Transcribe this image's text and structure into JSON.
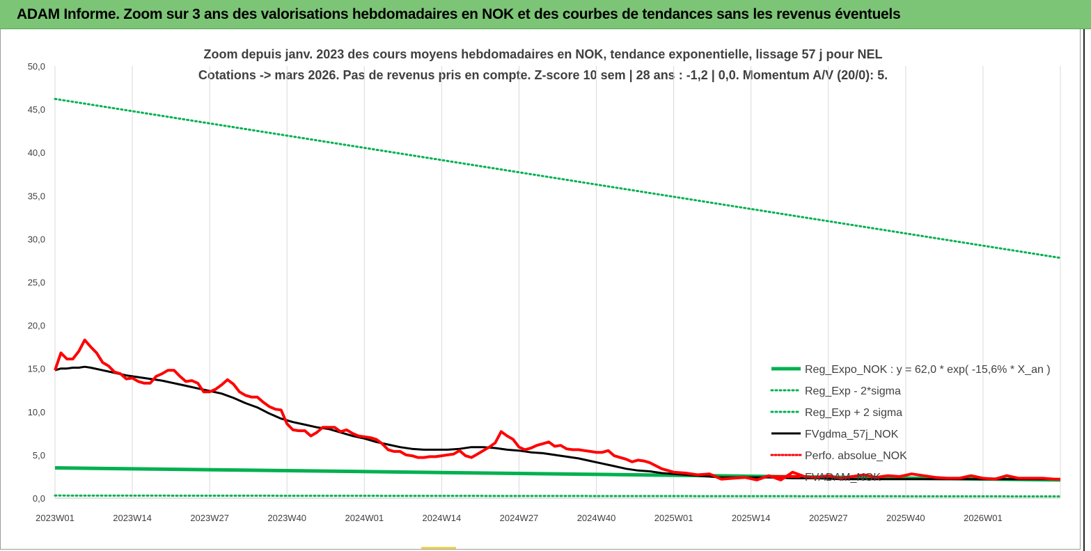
{
  "header": {
    "title": "ADAM Informe. Zoom sur 3 ans des valorisations hebdomadaires en NOK et des courbes de tendances sans les revenus éventuels"
  },
  "chart_data": {
    "type": "line",
    "title_line1": "Zoom depuis janv. 2023 des cours moyens hebdomadaires en NOK, tendance exponentielle, lissage 57 j pour NEL",
    "title_line2": "Cotations -> mars 2026. Pas de revenus pris en compte. Z-score 10 sem | 28 ans : -1,2 | 0,0. Momentum A/V (20/0): 5.",
    "ylim": [
      0,
      50
    ],
    "y_ticks": [
      "0,0",
      "5,0",
      "10,0",
      "15,0",
      "20,0",
      "25,0",
      "30,0",
      "35,0",
      "40,0",
      "45,0",
      "50,0"
    ],
    "x_ticks": [
      "2023W01",
      "2023W14",
      "2023W27",
      "2023W40",
      "2024W01",
      "2024W14",
      "2024W27",
      "2024W40",
      "2025W01",
      "2025W14",
      "2025W27",
      "2025W40",
      "2026W01"
    ],
    "x_range_weeks": [
      0,
      169
    ],
    "grid": "vertical",
    "legend_position": "bottom-right",
    "colors": {
      "reg_expo": "#00b050",
      "band": "#00b050",
      "fvgdma": "#000000",
      "perfo": "#ff0000",
      "fvadam": "#ff0000",
      "grid": "#d9d9d9"
    },
    "series": [
      {
        "name": "Reg_Expo_NOK : y = 62,0 * exp( -15,6% *  X_an )",
        "style": "solid-thick",
        "x": [
          0,
          169
        ],
        "values": [
          3.5,
          2.1
        ]
      },
      {
        "name": "Reg_Exp - 2*sigma",
        "style": "dotted",
        "x": [
          0,
          169
        ],
        "values": [
          0.3,
          0.2
        ]
      },
      {
        "name": "Reg_Exp + 2 sigma",
        "style": "dotted",
        "x": [
          0,
          169
        ],
        "values": [
          46.2,
          27.8
        ]
      },
      {
        "name": "FVgdma_57j_NOK",
        "style": "solid",
        "x": [
          0,
          1,
          2,
          3,
          4,
          5,
          6,
          8,
          10,
          12,
          14,
          16,
          18,
          20,
          22,
          24,
          26,
          28,
          30,
          32,
          34,
          36,
          38,
          40,
          42,
          44,
          46,
          48,
          50,
          52,
          54,
          56,
          58,
          60,
          62,
          64,
          66,
          68,
          70,
          72,
          74,
          76,
          78,
          80,
          82,
          84,
          86,
          88,
          90,
          92,
          94,
          96,
          98,
          100,
          102,
          104,
          106,
          108,
          110,
          112,
          114,
          116,
          118,
          120,
          124,
          128,
          132,
          136,
          140,
          144,
          148,
          152,
          156,
          160,
          164,
          169
        ],
        "values": [
          14.8,
          15.0,
          15.0,
          15.1,
          15.1,
          15.2,
          15.1,
          14.8,
          14.5,
          14.2,
          14.0,
          13.8,
          13.6,
          13.3,
          13.0,
          12.7,
          12.4,
          12.1,
          11.6,
          11.0,
          10.5,
          9.8,
          9.2,
          8.8,
          8.5,
          8.2,
          8.0,
          7.6,
          7.2,
          6.9,
          6.5,
          6.2,
          5.9,
          5.7,
          5.6,
          5.6,
          5.6,
          5.7,
          5.9,
          5.9,
          5.8,
          5.6,
          5.5,
          5.3,
          5.2,
          5.0,
          4.8,
          4.6,
          4.3,
          4.0,
          3.7,
          3.4,
          3.2,
          3.1,
          2.9,
          2.8,
          2.7,
          2.6,
          2.5,
          2.4,
          2.4,
          2.4,
          2.4,
          2.4,
          2.3,
          2.3,
          2.2,
          2.2,
          2.2,
          2.2,
          2.2,
          2.2,
          2.2,
          2.2,
          2.2,
          2.2
        ]
      },
      {
        "name": "Perfo. absolue_NOK",
        "style": "dotted",
        "x": [],
        "values": []
      },
      {
        "name": "FVADAM_NOK",
        "style": "solid-thick",
        "x": [
          0,
          1,
          2,
          3,
          4,
          5,
          6,
          7,
          8,
          9,
          10,
          11,
          12,
          13,
          14,
          15,
          16,
          17,
          18,
          19,
          20,
          21,
          22,
          23,
          24,
          25,
          26,
          27,
          28,
          29,
          30,
          31,
          32,
          33,
          34,
          35,
          36,
          37,
          38,
          39,
          40,
          41,
          42,
          43,
          44,
          45,
          46,
          47,
          48,
          49,
          50,
          51,
          52,
          53,
          54,
          55,
          56,
          57,
          58,
          59,
          60,
          61,
          62,
          63,
          64,
          65,
          66,
          67,
          68,
          69,
          70,
          71,
          72,
          73,
          74,
          75,
          76,
          77,
          78,
          79,
          80,
          81,
          82,
          83,
          84,
          85,
          86,
          87,
          88,
          89,
          90,
          91,
          92,
          93,
          94,
          95,
          96,
          97,
          98,
          99,
          100,
          102,
          104,
          106,
          108,
          110,
          112,
          114,
          116,
          118,
          120,
          122,
          124,
          126,
          128,
          130,
          132,
          134,
          136,
          138,
          140,
          142,
          144,
          146,
          148,
          150,
          152,
          154,
          156,
          158,
          160,
          162,
          164,
          166,
          168,
          169
        ],
        "values": [
          14.8,
          16.8,
          16.1,
          16.1,
          17.0,
          18.3,
          17.5,
          16.8,
          15.7,
          15.3,
          14.6,
          14.4,
          13.8,
          13.9,
          13.5,
          13.3,
          13.3,
          14.1,
          14.4,
          14.8,
          14.8,
          14.1,
          13.5,
          13.6,
          13.3,
          12.3,
          12.3,
          12.6,
          13.1,
          13.7,
          13.2,
          12.3,
          11.9,
          11.7,
          11.7,
          11.1,
          10.6,
          10.3,
          10.2,
          8.6,
          7.9,
          7.8,
          7.8,
          7.2,
          7.6,
          8.2,
          8.2,
          8.2,
          7.7,
          7.9,
          7.5,
          7.2,
          7.1,
          7.0,
          6.8,
          6.3,
          5.6,
          5.4,
          5.4,
          5.0,
          4.9,
          4.7,
          4.7,
          4.8,
          4.8,
          4.9,
          5.0,
          5.1,
          5.5,
          4.9,
          4.7,
          5.1,
          5.5,
          5.9,
          6.4,
          7.7,
          7.2,
          6.8,
          5.9,
          5.6,
          5.8,
          6.1,
          6.3,
          6.5,
          6.0,
          6.1,
          5.7,
          5.6,
          5.6,
          5.5,
          5.4,
          5.3,
          5.3,
          5.5,
          4.9,
          4.7,
          4.5,
          4.2,
          4.4,
          4.3,
          4.1,
          3.4,
          3.0,
          2.9,
          2.7,
          2.8,
          2.2,
          2.3,
          2.4,
          2.1,
          2.6,
          2.1,
          3.0,
          2.5,
          2.4,
          2.6,
          2.3,
          2.5,
          2.7,
          2.4,
          2.6,
          2.5,
          2.8,
          2.6,
          2.4,
          2.3,
          2.3,
          2.6,
          2.3,
          2.2,
          2.6,
          2.3,
          2.3,
          2.3,
          2.2,
          2.2
        ]
      }
    ]
  }
}
